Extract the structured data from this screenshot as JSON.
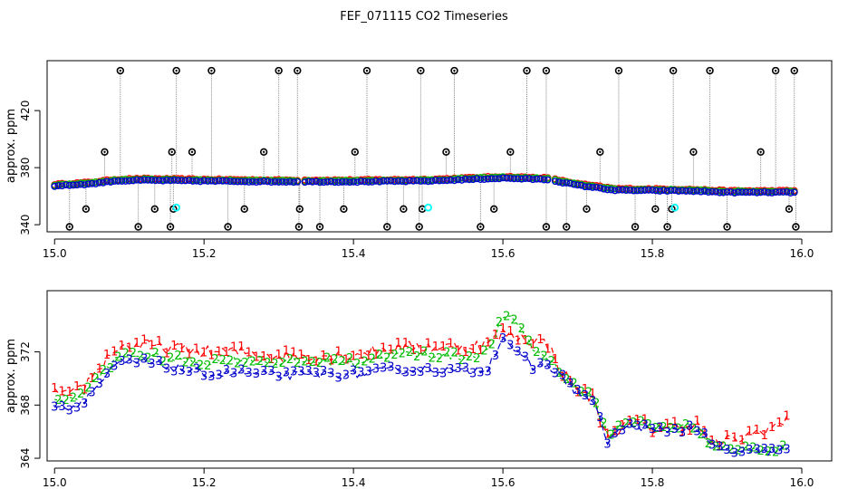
{
  "title": "FEF_071115  CO2 Timeseries",
  "colors": {
    "series1": "#ff0000",
    "series2": "#00bb00",
    "series3": "#0000cc",
    "outlier": "#000000",
    "flagged": "#00ffff",
    "spike_line": "#888888"
  },
  "chart_data": [
    {
      "type": "scatter",
      "title": "FEF_071115  CO2 Timeseries",
      "xlabel": "",
      "ylabel": "approx. ppm",
      "xlim": [
        14.99,
        16.04
      ],
      "ylim": [
        335,
        455
      ],
      "xticks": [
        15.0,
        15.2,
        15.4,
        15.6,
        15.8,
        16.0
      ],
      "xtick_labels": [
        "15.0",
        "15.2",
        "15.4",
        "15.6",
        "15.8",
        "16.0"
      ],
      "yticks": [
        340,
        380,
        420
      ],
      "ytick_labels": [
        "340",
        "380",
        "420"
      ],
      "gaps": [
        15.33,
        15.665
      ],
      "baseline_profile": [
        [
          15.0,
          367.5
        ],
        [
          15.05,
          369
        ],
        [
          15.08,
          371
        ],
        [
          15.12,
          371.5
        ],
        [
          15.2,
          371
        ],
        [
          15.3,
          370.5
        ],
        [
          15.4,
          370.5
        ],
        [
          15.5,
          371
        ],
        [
          15.6,
          373
        ],
        [
          15.66,
          372
        ],
        [
          15.7,
          368
        ],
        [
          15.73,
          366
        ],
        [
          15.75,
          364.5
        ],
        [
          15.8,
          364.3
        ],
        [
          15.85,
          364
        ],
        [
          15.9,
          363
        ],
        [
          15.99,
          363
        ]
      ],
      "high_spikes": [
        15.088,
        15.163,
        15.21,
        15.3,
        15.325,
        15.418,
        15.49,
        15.535,
        15.632,
        15.658,
        15.755,
        15.828,
        15.877,
        15.965,
        15.99
      ],
      "mid_high_spikes": [
        15.067,
        15.157,
        15.184,
        15.28,
        15.402,
        15.524,
        15.61,
        15.73,
        15.855,
        15.945
      ],
      "low_spikes": [
        15.042,
        15.134,
        15.159,
        15.254,
        15.328,
        15.387,
        15.467,
        15.492,
        15.588,
        15.712,
        15.804,
        15.826,
        15.983
      ],
      "bottom_spikes": [
        15.02,
        15.112,
        15.155,
        15.232,
        15.327,
        15.355,
        15.445,
        15.488,
        15.57,
        15.658,
        15.685,
        15.777,
        15.82,
        15.9,
        15.992
      ],
      "flagged_points": [
        [
          15.163,
          352
        ],
        [
          15.5,
          352
        ],
        [
          15.83,
          352
        ]
      ]
    },
    {
      "type": "line",
      "title": "",
      "xlabel": "",
      "ylabel": "approx. ppm",
      "xlim": [
        14.99,
        16.04
      ],
      "ylim": [
        363.8,
        376.6
      ],
      "xticks": [
        15.0,
        15.2,
        15.4,
        15.6,
        15.8,
        16.0
      ],
      "xtick_labels": [
        "15.0",
        "15.2",
        "15.4",
        "15.6",
        "15.8",
        "16.0"
      ],
      "yticks": [
        364,
        368,
        372
      ],
      "ytick_labels": [
        "364",
        "368",
        "372"
      ],
      "series": [
        {
          "name": "1",
          "label": "1",
          "points": [
            [
              15.0,
              369
            ],
            [
              15.02,
              368.6
            ],
            [
              15.04,
              369.5
            ],
            [
              15.06,
              370.8
            ],
            [
              15.08,
              372.2
            ],
            [
              15.1,
              372.5
            ],
            [
              15.12,
              372.5
            ],
            [
              15.15,
              372.3
            ],
            [
              15.2,
              372
            ],
            [
              15.25,
              372
            ],
            [
              15.3,
              371.7
            ],
            [
              15.35,
              371.7
            ],
            [
              15.4,
              371.8
            ],
            [
              15.45,
              372.3
            ],
            [
              15.5,
              372.4
            ],
            [
              15.55,
              372.4
            ],
            [
              15.58,
              372.6
            ],
            [
              15.6,
              373.4
            ],
            [
              15.63,
              373
            ],
            [
              15.66,
              372.6
            ],
            [
              15.68,
              370.4
            ],
            [
              15.7,
              369.2
            ],
            [
              15.72,
              368.5
            ],
            [
              15.74,
              365.5
            ],
            [
              15.76,
              366.5
            ],
            [
              15.78,
              366.8
            ],
            [
              15.8,
              366.2
            ],
            [
              15.83,
              366.4
            ],
            [
              15.86,
              366.5
            ],
            [
              15.88,
              365
            ],
            [
              15.9,
              365.3
            ],
            [
              15.92,
              365.5
            ],
            [
              15.94,
              366
            ],
            [
              15.96,
              366.3
            ],
            [
              15.98,
              366.8
            ],
            [
              15.99,
              367.8
            ]
          ]
        },
        {
          "name": "2",
          "label": "2",
          "points": [
            [
              15.0,
              368.6
            ],
            [
              15.02,
              368.3
            ],
            [
              15.04,
              369
            ],
            [
              15.06,
              370.2
            ],
            [
              15.08,
              371.3
            ],
            [
              15.1,
              371.8
            ],
            [
              15.12,
              371.7
            ],
            [
              15.15,
              371.5
            ],
            [
              15.2,
              371.2
            ],
            [
              15.25,
              371.4
            ],
            [
              15.3,
              371.2
            ],
            [
              15.35,
              371.3
            ],
            [
              15.4,
              371.2
            ],
            [
              15.45,
              371.8
            ],
            [
              15.5,
              371.8
            ],
            [
              15.55,
              371.6
            ],
            [
              15.58,
              372
            ],
            [
              15.6,
              374.6
            ],
            [
              15.62,
              374.2
            ],
            [
              15.64,
              372.2
            ],
            [
              15.66,
              371.6
            ],
            [
              15.68,
              370.2
            ],
            [
              15.7,
              369.2
            ],
            [
              15.72,
              368.5
            ],
            [
              15.74,
              365.8
            ],
            [
              15.76,
              366.5
            ],
            [
              15.78,
              366.8
            ],
            [
              15.8,
              366.3
            ],
            [
              15.83,
              366.4
            ],
            [
              15.86,
              366.4
            ],
            [
              15.88,
              365
            ],
            [
              15.9,
              364.8
            ],
            [
              15.93,
              364.6
            ],
            [
              15.96,
              364.7
            ],
            [
              15.99,
              364.9
            ]
          ]
        },
        {
          "name": "3",
          "label": "3",
          "points": [
            [
              15.0,
              368.1
            ],
            [
              15.02,
              367.7
            ],
            [
              15.04,
              368.4
            ],
            [
              15.06,
              369.6
            ],
            [
              15.08,
              370.9
            ],
            [
              15.1,
              371.2
            ],
            [
              15.12,
              371.2
            ],
            [
              15.15,
              370.9
            ],
            [
              15.2,
              370.3
            ],
            [
              15.25,
              370.4
            ],
            [
              15.3,
              370.2
            ],
            [
              15.35,
              370.3
            ],
            [
              15.4,
              370.3
            ],
            [
              15.45,
              370.6
            ],
            [
              15.5,
              370.7
            ],
            [
              15.55,
              370.5
            ],
            [
              15.58,
              370.8
            ],
            [
              15.6,
              373.2
            ],
            [
              15.62,
              371.8
            ],
            [
              15.64,
              370.8
            ],
            [
              15.66,
              371
            ],
            [
              15.68,
              370
            ],
            [
              15.7,
              368.9
            ],
            [
              15.72,
              368.3
            ],
            [
              15.74,
              365.3
            ],
            [
              15.76,
              366.2
            ],
            [
              15.78,
              366.5
            ],
            [
              15.8,
              366
            ],
            [
              15.83,
              366.2
            ],
            [
              15.86,
              366.2
            ],
            [
              15.88,
              364.9
            ],
            [
              15.9,
              364.5
            ],
            [
              15.93,
              364.4
            ],
            [
              15.96,
              364.5
            ],
            [
              15.99,
              364.7
            ]
          ]
        }
      ]
    }
  ]
}
